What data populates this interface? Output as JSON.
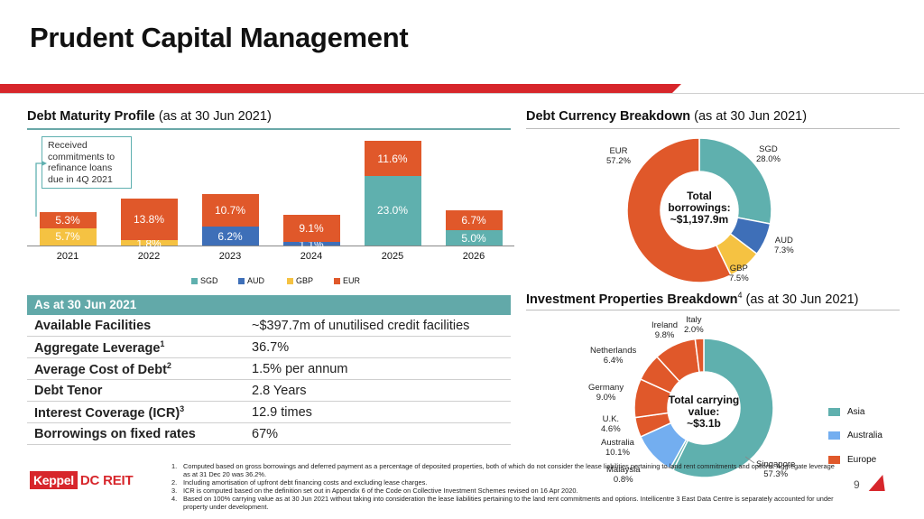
{
  "page": {
    "title": "Prudent Capital Management",
    "page_number": "9",
    "logo_keppel": "Keppel",
    "logo_dc": "DC REIT"
  },
  "colors": {
    "SGD": "#5fb0ae",
    "AUD": "#3e6fb8",
    "GBP": "#f5c242",
    "EUR": "#e0582a",
    "Australia": "#73aef0",
    "teal_head": "#62a9a9",
    "accent": "#d7262b"
  },
  "debt_maturity": {
    "title_bold": "Debt Maturity Profile",
    "title_rest": " (as at 30 Jun 2021)",
    "callout": "Received commitments to refinance loans due in 4Q 2021"
  },
  "debt_currency": {
    "title_bold": "Debt Currency Breakdown",
    "title_rest": " (as at 30 Jun 2021)",
    "center_1": "Total",
    "center_2": "borrowings:",
    "center_3": "~$1,197.9m"
  },
  "investment": {
    "title_bold": "Investment Properties Breakdown",
    "title_sup": "4",
    "title_rest": " (as at 30 Jun 2021)",
    "center_1": "Total carrying",
    "center_2": "value:",
    "center_3": "~$3.1b",
    "legend": [
      "Asia",
      "Australia",
      "Europe"
    ]
  },
  "chart_data": [
    {
      "type": "bar",
      "title": "Debt Maturity Profile (as at 30 Jun 2021)",
      "categories": [
        "2021",
        "2022",
        "2023",
        "2024",
        "2025",
        "2026"
      ],
      "stacked": true,
      "series": [
        {
          "name": "SGD",
          "values": [
            0,
            0,
            0,
            0,
            23.0,
            5.0
          ]
        },
        {
          "name": "AUD",
          "values": [
            0,
            0,
            6.2,
            1.1,
            0,
            0
          ]
        },
        {
          "name": "GBP",
          "values": [
            5.7,
            1.8,
            0,
            0,
            0,
            0
          ]
        },
        {
          "name": "EUR",
          "values": [
            5.3,
            13.8,
            10.7,
            9.1,
            11.6,
            6.7
          ]
        }
      ],
      "unit": "%",
      "legend": "bottom"
    },
    {
      "type": "pie",
      "title": "Debt Currency Breakdown (as at 30 Jun 2021)",
      "slices": [
        {
          "label": "SGD",
          "value": 28.0
        },
        {
          "label": "AUD",
          "value": 7.3
        },
        {
          "label": "GBP",
          "value": 7.5
        },
        {
          "label": "EUR",
          "value": 57.2
        }
      ]
    },
    {
      "type": "pie",
      "title": "Investment Properties Breakdown (as at 30 Jun 2021)",
      "slices": [
        {
          "label": "Singapore",
          "value": 57.3,
          "group": "Asia"
        },
        {
          "label": "Malaysia",
          "value": 0.8,
          "group": "Asia"
        },
        {
          "label": "Australia",
          "value": 10.1,
          "group": "Australia"
        },
        {
          "label": "U.K.",
          "value": 4.6,
          "group": "Europe"
        },
        {
          "label": "Germany",
          "value": 9.0,
          "group": "Europe"
        },
        {
          "label": "Netherlands",
          "value": 6.4,
          "group": "Europe"
        },
        {
          "label": "Ireland",
          "value": 9.8,
          "group": "Europe"
        },
        {
          "label": "Italy",
          "value": 2.0,
          "group": "Europe"
        }
      ]
    }
  ],
  "metrics": {
    "header": "As at 30 Jun 2021",
    "rows": [
      {
        "key": "Available Facilities",
        "sup": "",
        "value": "~$397.7m of unutilised credit facilities"
      },
      {
        "key": "Aggregate Leverage",
        "sup": "1",
        "value": "36.7%"
      },
      {
        "key": "Average Cost of Debt",
        "sup": "2",
        "value": "1.5% per annum"
      },
      {
        "key": "Debt Tenor",
        "sup": "",
        "value": "2.8 Years"
      },
      {
        "key": "Interest Coverage (ICR)",
        "sup": "3",
        "value": "12.9 times"
      },
      {
        "key": "Borrowings on fixed rates",
        "sup": "",
        "value": "67%"
      }
    ]
  },
  "footnotes": [
    {
      "n": "1.",
      "text": "Computed based on gross borrowings and deferred payment as a percentage of deposited properties, both of which do not consider the lease liabilities pertaining to land rent commitments and options. Aggregate leverage as at 31 Dec 20 was 36.2%."
    },
    {
      "n": "2.",
      "text": "Including amortisation of upfront debt financing costs and excluding lease charges."
    },
    {
      "n": "3.",
      "text": "ICR is computed based on the definition set out in Appendix 6 of the Code on Collective Investment Schemes revised on 16 Apr 2020."
    },
    {
      "n": "4.",
      "text": "Based on 100% carrying value as at 30 Jun 2021 without taking into consideration the lease liabilities pertaining to the land rent commitments and options. Intellicentre 3 East Data Centre is separately accounted for under property under development."
    }
  ]
}
